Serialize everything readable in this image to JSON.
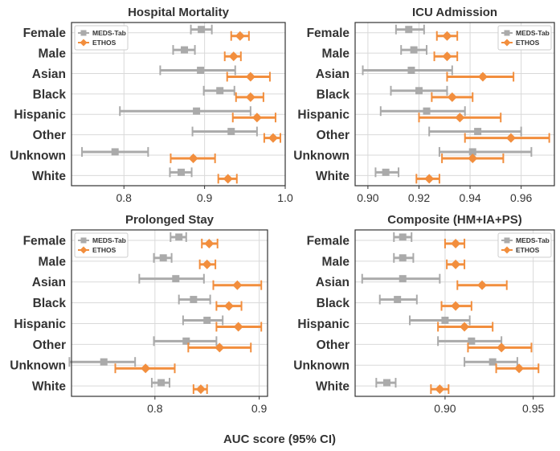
{
  "figure": {
    "xlabel": "AUC score (95% CI)"
  },
  "colors": {
    "meds": "#aaaaaa",
    "ethos": "#f28e3d",
    "grid": "#d9d9d9",
    "axis": "#333333"
  },
  "legend": {
    "meds": "MEDS-Tab",
    "ethos": "ETHOS"
  },
  "chart_data": [
    {
      "type": "errorbar",
      "title": "Hospital Mortality",
      "xlim": [
        0.735,
        1.0
      ],
      "xticks": [
        0.8,
        0.9,
        1.0
      ],
      "xtick_labels": [
        "0.8",
        "0.9",
        "1.0"
      ],
      "categories": [
        "Female",
        "Male",
        "Asian",
        "Black",
        "Hispanic",
        "Other",
        "Unknown",
        "White"
      ],
      "series": [
        {
          "name": "MEDS-Tab",
          "values": [
            0.896,
            0.875,
            0.895,
            0.919,
            0.89,
            0.933,
            0.789,
            0.871
          ],
          "lower": [
            0.883,
            0.861,
            0.845,
            0.899,
            0.795,
            0.885,
            0.748,
            0.857
          ],
          "upper": [
            0.909,
            0.888,
            0.938,
            0.937,
            0.957,
            0.965,
            0.83,
            0.884
          ]
        },
        {
          "name": "ETHOS",
          "values": [
            0.944,
            0.936,
            0.957,
            0.957,
            0.965,
            0.985,
            0.886,
            0.929
          ],
          "lower": [
            0.933,
            0.925,
            0.928,
            0.939,
            0.935,
            0.974,
            0.858,
            0.917
          ],
          "upper": [
            0.955,
            0.945,
            0.981,
            0.973,
            0.988,
            0.994,
            0.913,
            0.94
          ]
        }
      ]
    },
    {
      "type": "errorbar",
      "title": "ICU Admission",
      "xlim": [
        0.895,
        0.973
      ],
      "xticks": [
        0.9,
        0.92,
        0.94,
        0.96
      ],
      "xtick_labels": [
        "0.90",
        "0.92",
        "0.94",
        "0.96"
      ],
      "categories": [
        "Female",
        "Male",
        "Asian",
        "Black",
        "Hispanic",
        "Other",
        "Unknown",
        "White"
      ],
      "series": [
        {
          "name": "MEDS-Tab",
          "values": [
            0.916,
            0.918,
            0.917,
            0.92,
            0.923,
            0.943,
            0.941,
            0.907
          ],
          "lower": [
            0.911,
            0.913,
            0.898,
            0.909,
            0.905,
            0.924,
            0.928,
            0.903
          ],
          "upper": [
            0.922,
            0.923,
            0.933,
            0.931,
            0.938,
            0.96,
            0.964,
            0.912
          ]
        },
        {
          "name": "ETHOS",
          "values": [
            0.931,
            0.931,
            0.945,
            0.933,
            0.936,
            0.956,
            0.941,
            0.924
          ],
          "lower": [
            0.927,
            0.926,
            0.931,
            0.925,
            0.92,
            0.938,
            0.929,
            0.919
          ],
          "upper": [
            0.935,
            0.935,
            0.957,
            0.941,
            0.952,
            0.971,
            0.953,
            0.928
          ]
        }
      ]
    },
    {
      "type": "errorbar",
      "title": "Prolonged Stay",
      "xlim": [
        0.72,
        0.908
      ],
      "xticks": [
        0.8,
        0.9
      ],
      "xtick_labels": [
        "0.8",
        "0.9"
      ],
      "categories": [
        "Female",
        "Male",
        "Asian",
        "Black",
        "Hispanic",
        "Other",
        "Unknown",
        "White"
      ],
      "series": [
        {
          "name": "MEDS-Tab",
          "values": [
            0.823,
            0.808,
            0.82,
            0.837,
            0.85,
            0.83,
            0.751,
            0.806
          ],
          "lower": [
            0.815,
            0.799,
            0.785,
            0.823,
            0.827,
            0.799,
            0.718,
            0.797
          ],
          "upper": [
            0.83,
            0.816,
            0.847,
            0.853,
            0.865,
            0.859,
            0.781,
            0.814
          ]
        },
        {
          "name": "ETHOS",
          "values": [
            0.852,
            0.85,
            0.879,
            0.871,
            0.88,
            0.862,
            0.791,
            0.844
          ],
          "lower": [
            0.845,
            0.843,
            0.856,
            0.859,
            0.859,
            0.832,
            0.762,
            0.837
          ],
          "upper": [
            0.86,
            0.858,
            0.902,
            0.883,
            0.902,
            0.892,
            0.819,
            0.85
          ]
        }
      ]
    },
    {
      "type": "errorbar",
      "title": "Composite (HM+IA+PS)",
      "xlim": [
        0.849,
        0.962
      ],
      "xticks": [
        0.9,
        0.95
      ],
      "xtick_labels": [
        "0.90",
        "0.95"
      ],
      "categories": [
        "Female",
        "Male",
        "Asian",
        "Black",
        "Hispanic",
        "Other",
        "Unknown",
        "White"
      ],
      "series": [
        {
          "name": "MEDS-Tab",
          "values": [
            0.876,
            0.876,
            0.876,
            0.873,
            0.9,
            0.915,
            0.927,
            0.867
          ],
          "lower": [
            0.871,
            0.871,
            0.853,
            0.863,
            0.88,
            0.896,
            0.911,
            0.861
          ],
          "upper": [
            0.881,
            0.882,
            0.897,
            0.884,
            0.914,
            0.932,
            0.941,
            0.872
          ]
        },
        {
          "name": "ETHOS",
          "values": [
            0.906,
            0.906,
            0.921,
            0.906,
            0.911,
            0.932,
            0.942,
            0.897
          ],
          "lower": [
            0.9,
            0.901,
            0.907,
            0.898,
            0.896,
            0.913,
            0.929,
            0.892
          ],
          "upper": [
            0.911,
            0.911,
            0.935,
            0.915,
            0.927,
            0.949,
            0.953,
            0.902
          ]
        }
      ]
    }
  ]
}
